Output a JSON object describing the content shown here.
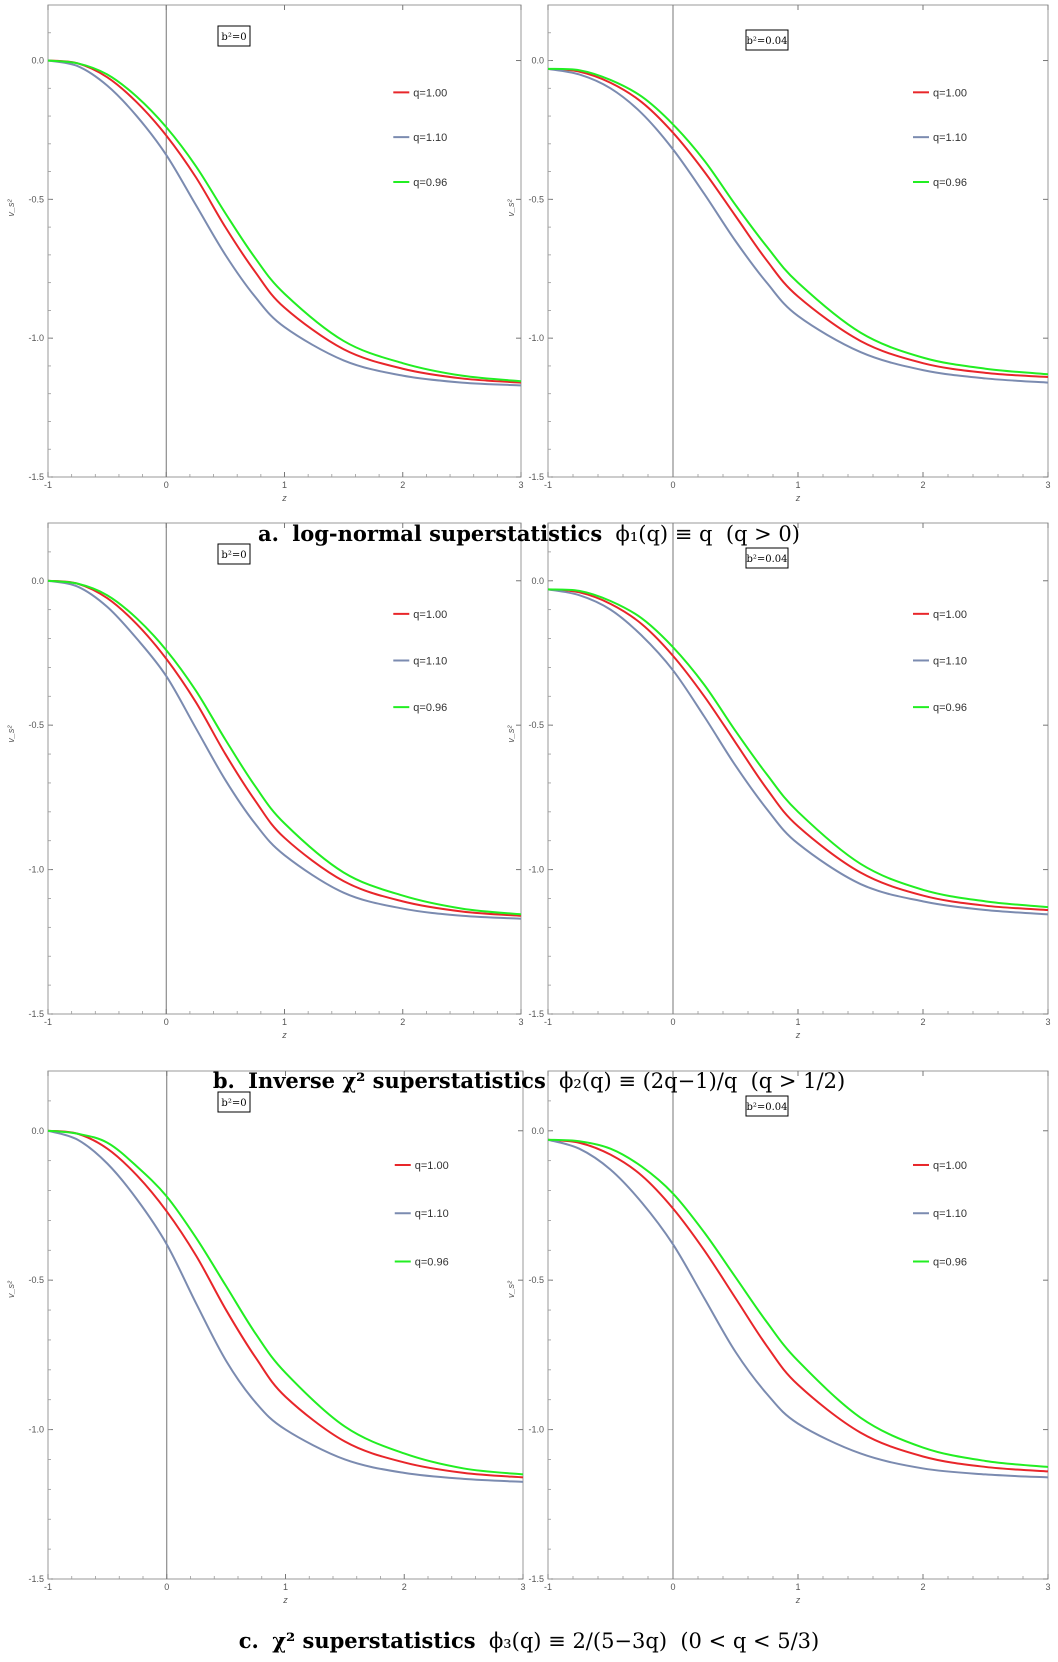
{
  "chart_data": [
    {
      "type": "line",
      "panel": "a-left",
      "annotation": "b²=0",
      "xlabel": "z",
      "ylabel": "v_s²",
      "xlim": [
        -1,
        3
      ],
      "ylim": [
        -1.5,
        0.2
      ],
      "xticks": [
        "-1",
        "0",
        "1",
        "2",
        "3"
      ],
      "yticks": [
        "0.0",
        "-0.5",
        "-1.0",
        "-1.5"
      ],
      "legend_position": "top-right",
      "series": [
        {
          "name": "q=1.00",
          "color": "#e8262a",
          "x": [
            -1,
            -0.75,
            -0.5,
            -0.25,
            0,
            0.25,
            0.5,
            0.75,
            1,
            1.5,
            2,
            2.5,
            3
          ],
          "y": [
            0.0,
            -0.01,
            -0.06,
            -0.15,
            -0.27,
            -0.42,
            -0.6,
            -0.76,
            -0.89,
            -1.04,
            -1.11,
            -1.145,
            -1.16
          ]
        },
        {
          "name": "q=1.10",
          "color": "#7b8bb0",
          "x": [
            -1,
            -0.75,
            -0.5,
            -0.25,
            0,
            0.25,
            0.5,
            0.75,
            1,
            1.5,
            2,
            2.5,
            3
          ],
          "y": [
            0.0,
            -0.02,
            -0.09,
            -0.2,
            -0.34,
            -0.52,
            -0.7,
            -0.85,
            -0.96,
            -1.08,
            -1.135,
            -1.16,
            -1.17
          ]
        },
        {
          "name": "q=0.96",
          "color": "#22ee22",
          "x": [
            -1,
            -0.75,
            -0.5,
            -0.25,
            0,
            0.25,
            0.5,
            0.75,
            1,
            1.5,
            2,
            2.5,
            3
          ],
          "y": [
            0.0,
            -0.01,
            -0.05,
            -0.13,
            -0.24,
            -0.38,
            -0.55,
            -0.71,
            -0.84,
            -1.01,
            -1.09,
            -1.135,
            -1.155
          ]
        }
      ]
    },
    {
      "type": "line",
      "panel": "a-right",
      "annotation": "b²=0.04",
      "xlabel": "z",
      "ylabel": "v_s²",
      "xlim": [
        -1,
        3
      ],
      "ylim": [
        -1.5,
        0.2
      ],
      "xticks": [
        "-1",
        "0",
        "1",
        "2",
        "3"
      ],
      "yticks": [
        "0.0",
        "-0.5",
        "-1.0",
        "-1.5"
      ],
      "legend_position": "top-right",
      "series": [
        {
          "name": "q=1.00",
          "color": "#e8262a",
          "x": [
            -1,
            -0.75,
            -0.5,
            -0.25,
            0,
            0.25,
            0.5,
            0.75,
            1,
            1.5,
            2,
            2.5,
            3
          ],
          "y": [
            -0.03,
            -0.04,
            -0.08,
            -0.15,
            -0.26,
            -0.4,
            -0.56,
            -0.72,
            -0.85,
            -1.01,
            -1.09,
            -1.125,
            -1.14
          ]
        },
        {
          "name": "q=1.10",
          "color": "#7b8bb0",
          "x": [
            -1,
            -0.75,
            -0.5,
            -0.25,
            0,
            0.25,
            0.5,
            0.75,
            1,
            1.5,
            2,
            2.5,
            3
          ],
          "y": [
            -0.03,
            -0.05,
            -0.1,
            -0.19,
            -0.32,
            -0.48,
            -0.65,
            -0.8,
            -0.92,
            -1.05,
            -1.115,
            -1.145,
            -1.16
          ]
        },
        {
          "name": "q=0.96",
          "color": "#22ee22",
          "x": [
            -1,
            -0.75,
            -0.5,
            -0.25,
            0,
            0.25,
            0.5,
            0.75,
            1,
            1.5,
            2,
            2.5,
            3
          ],
          "y": [
            -0.03,
            -0.035,
            -0.07,
            -0.13,
            -0.23,
            -0.36,
            -0.52,
            -0.67,
            -0.8,
            -0.98,
            -1.07,
            -1.11,
            -1.13
          ]
        }
      ]
    },
    {
      "type": "line",
      "panel": "b-left",
      "annotation": "b²=0",
      "xlabel": "z",
      "ylabel": "v_s²",
      "xlim": [
        -1,
        3
      ],
      "ylim": [
        -1.5,
        0.2
      ],
      "xticks": [
        "-1",
        "0",
        "1",
        "2",
        "3"
      ],
      "yticks": [
        "0.0",
        "-0.5",
        "-1.0",
        "-1.5"
      ],
      "legend_position": "top-right",
      "series": [
        {
          "name": "q=1.00",
          "color": "#e8262a",
          "x": [
            -1,
            -0.75,
            -0.5,
            -0.25,
            0,
            0.25,
            0.5,
            0.75,
            1,
            1.5,
            2,
            2.5,
            3
          ],
          "y": [
            0.0,
            -0.01,
            -0.06,
            -0.15,
            -0.27,
            -0.42,
            -0.6,
            -0.76,
            -0.89,
            -1.04,
            -1.11,
            -1.145,
            -1.16
          ]
        },
        {
          "name": "q=1.10",
          "color": "#7b8bb0",
          "x": [
            -1,
            -0.75,
            -0.5,
            -0.25,
            0,
            0.25,
            0.5,
            0.75,
            1,
            1.5,
            2,
            2.5,
            3
          ],
          "y": [
            0.0,
            -0.02,
            -0.09,
            -0.2,
            -0.33,
            -0.51,
            -0.69,
            -0.84,
            -0.95,
            -1.08,
            -1.135,
            -1.16,
            -1.17
          ]
        },
        {
          "name": "q=0.96",
          "color": "#22ee22",
          "x": [
            -1,
            -0.75,
            -0.5,
            -0.25,
            0,
            0.25,
            0.5,
            0.75,
            1,
            1.5,
            2,
            2.5,
            3
          ],
          "y": [
            0.0,
            -0.01,
            -0.05,
            -0.13,
            -0.24,
            -0.38,
            -0.55,
            -0.71,
            -0.84,
            -1.01,
            -1.09,
            -1.135,
            -1.155
          ]
        }
      ]
    },
    {
      "type": "line",
      "panel": "b-right",
      "annotation": "b²=0.04",
      "xlabel": "z",
      "ylabel": "v_s²",
      "xlim": [
        -1,
        3
      ],
      "ylim": [
        -1.5,
        0.2
      ],
      "xticks": [
        "-1",
        "0",
        "1",
        "2",
        "3"
      ],
      "yticks": [
        "0.0",
        "-0.5",
        "-1.0",
        "-1.5"
      ],
      "legend_position": "top-right",
      "series": [
        {
          "name": "q=1.00",
          "color": "#e8262a",
          "x": [
            -1,
            -0.75,
            -0.5,
            -0.25,
            0,
            0.25,
            0.5,
            0.75,
            1,
            1.5,
            2,
            2.5,
            3
          ],
          "y": [
            -0.03,
            -0.04,
            -0.08,
            -0.15,
            -0.26,
            -0.4,
            -0.56,
            -0.72,
            -0.85,
            -1.01,
            -1.09,
            -1.125,
            -1.14
          ]
        },
        {
          "name": "q=1.10",
          "color": "#7b8bb0",
          "x": [
            -1,
            -0.75,
            -0.5,
            -0.25,
            0,
            0.25,
            0.5,
            0.75,
            1,
            1.5,
            2,
            2.5,
            3
          ],
          "y": [
            -0.03,
            -0.05,
            -0.1,
            -0.19,
            -0.31,
            -0.47,
            -0.64,
            -0.79,
            -0.91,
            -1.05,
            -1.11,
            -1.14,
            -1.155
          ]
        },
        {
          "name": "q=0.96",
          "color": "#22ee22",
          "x": [
            -1,
            -0.75,
            -0.5,
            -0.25,
            0,
            0.25,
            0.5,
            0.75,
            1,
            1.5,
            2,
            2.5,
            3
          ],
          "y": [
            -0.03,
            -0.035,
            -0.07,
            -0.13,
            -0.23,
            -0.36,
            -0.52,
            -0.67,
            -0.8,
            -0.98,
            -1.07,
            -1.11,
            -1.13
          ]
        }
      ]
    },
    {
      "type": "line",
      "panel": "c-left",
      "annotation": "b²=0",
      "xlabel": "z",
      "ylabel": "v_s²",
      "xlim": [
        -1,
        3
      ],
      "ylim": [
        -1.5,
        0.2
      ],
      "xticks": [
        "-1",
        "0",
        "1",
        "2",
        "3"
      ],
      "yticks": [
        "0.0",
        "-0.5",
        "-1.0",
        "-1.5"
      ],
      "legend_position": "top-right",
      "series": [
        {
          "name": "q=1.00",
          "color": "#e8262a",
          "x": [
            -1,
            -0.75,
            -0.5,
            -0.25,
            0,
            0.25,
            0.5,
            0.75,
            1,
            1.5,
            2,
            2.5,
            3
          ],
          "y": [
            0.0,
            -0.01,
            -0.06,
            -0.15,
            -0.27,
            -0.42,
            -0.6,
            -0.76,
            -0.89,
            -1.04,
            -1.11,
            -1.145,
            -1.16
          ]
        },
        {
          "name": "q=1.10",
          "color": "#7b8bb0",
          "x": [
            -1,
            -0.75,
            -0.5,
            -0.25,
            0,
            0.25,
            0.5,
            0.75,
            1,
            1.5,
            2,
            2.5,
            3
          ],
          "y": [
            0.0,
            -0.03,
            -0.11,
            -0.23,
            -0.38,
            -0.58,
            -0.77,
            -0.91,
            -1.0,
            -1.1,
            -1.145,
            -1.165,
            -1.175
          ]
        },
        {
          "name": "q=0.96",
          "color": "#22ee22",
          "x": [
            -1,
            -0.75,
            -0.5,
            -0.25,
            0,
            0.25,
            0.5,
            0.75,
            1,
            1.5,
            2,
            2.5,
            3
          ],
          "y": [
            0.0,
            -0.01,
            -0.04,
            -0.12,
            -0.22,
            -0.36,
            -0.52,
            -0.68,
            -0.81,
            -0.99,
            -1.08,
            -1.13,
            -1.15
          ]
        }
      ]
    },
    {
      "type": "line",
      "panel": "c-right",
      "annotation": "b²=0.04",
      "xlabel": "z",
      "ylabel": "v_s²",
      "xlim": [
        -1,
        3
      ],
      "ylim": [
        -1.5,
        0.2
      ],
      "xticks": [
        "-1",
        "0",
        "1",
        "2",
        "3"
      ],
      "yticks": [
        "0.0",
        "-0.5",
        "-1.0",
        "-1.5"
      ],
      "legend_position": "top-right",
      "series": [
        {
          "name": "q=1.00",
          "color": "#e8262a",
          "x": [
            -1,
            -0.75,
            -0.5,
            -0.25,
            0,
            0.25,
            0.5,
            0.75,
            1,
            1.5,
            2,
            2.5,
            3
          ],
          "y": [
            -0.03,
            -0.04,
            -0.08,
            -0.15,
            -0.26,
            -0.4,
            -0.56,
            -0.72,
            -0.85,
            -1.01,
            -1.09,
            -1.125,
            -1.14
          ]
        },
        {
          "name": "q=1.10",
          "color": "#7b8bb0",
          "x": [
            -1,
            -0.75,
            -0.5,
            -0.25,
            0,
            0.25,
            0.5,
            0.75,
            1,
            1.5,
            2,
            2.5,
            3
          ],
          "y": [
            -0.03,
            -0.06,
            -0.13,
            -0.24,
            -0.38,
            -0.56,
            -0.74,
            -0.88,
            -0.98,
            -1.08,
            -1.13,
            -1.15,
            -1.16
          ]
        },
        {
          "name": "q=0.96",
          "color": "#22ee22",
          "x": [
            -1,
            -0.75,
            -0.5,
            -0.25,
            0,
            0.25,
            0.5,
            0.75,
            1,
            1.5,
            2,
            2.5,
            3
          ],
          "y": [
            -0.03,
            -0.035,
            -0.06,
            -0.12,
            -0.21,
            -0.34,
            -0.49,
            -0.64,
            -0.77,
            -0.96,
            -1.06,
            -1.105,
            -1.125
          ]
        }
      ]
    }
  ],
  "captions": {
    "a": {
      "label": "a.",
      "text": "log-normal superstatistics",
      "formula": "ϕ₁(q) ≡ q",
      "condition": "(q > 0)"
    },
    "b": {
      "label": "b.",
      "text": "Inverse χ² superstatistics",
      "formula": "ϕ₂(q) ≡ (2q−1)/q",
      "condition": "(q > 1/2)"
    },
    "c": {
      "label": "c.",
      "text": "χ² superstatistics",
      "formula": "ϕ₃(q) ≡ 2/(5−3q)",
      "condition": "(0 < q < 5/3)"
    }
  }
}
